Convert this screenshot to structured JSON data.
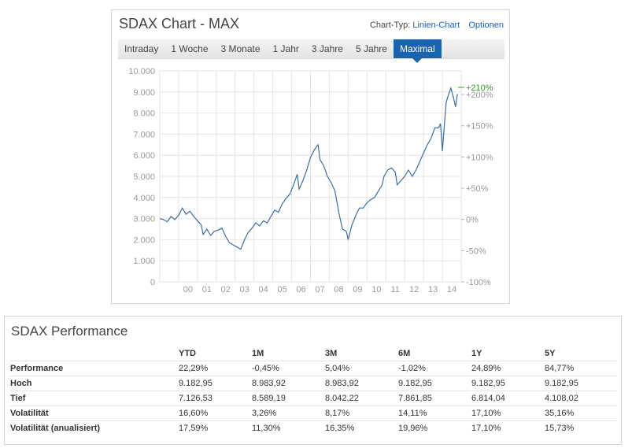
{
  "chart": {
    "title": "SDAX Chart - MAX",
    "chart_type_label": "Chart-Typ:",
    "chart_type_value": "Linien-Chart",
    "options_label": "Optionen",
    "tabs": [
      {
        "label": "Intraday",
        "active": false
      },
      {
        "label": "1 Woche",
        "active": false
      },
      {
        "label": "3 Monate",
        "active": false
      },
      {
        "label": "1 Jahr",
        "active": false
      },
      {
        "label": "3 Jahre",
        "active": false
      },
      {
        "label": "5 Jahre",
        "active": false
      },
      {
        "label": "Maximal",
        "active": true
      }
    ]
  },
  "chart_data": {
    "type": "line",
    "ylim": [
      0,
      10000
    ],
    "y_ticks": [
      "0",
      "1.000",
      "2.000",
      "3.000",
      "4.000",
      "5.000",
      "6.000",
      "7.000",
      "8.000",
      "9.000",
      "10.000"
    ],
    "y2_ticks": [
      "-100%",
      "-50%",
      "0%",
      "+50%",
      "+100%",
      "+150%",
      "+200%"
    ],
    "y2_values": [
      -100,
      -50,
      0,
      50,
      100,
      150,
      200
    ],
    "xlim": [
      1999.0,
      2015.0
    ],
    "x_ticks": [
      "00",
      "01",
      "02",
      "03",
      "04",
      "05",
      "06",
      "07",
      "08",
      "09",
      "10",
      "11",
      "12",
      "13",
      "14"
    ],
    "x_tick_values": [
      2000.5,
      2001.5,
      2002.5,
      2003.5,
      2004.5,
      2005.5,
      2006.5,
      2007.5,
      2008.5,
      2009.5,
      2010.5,
      2011.5,
      2012.5,
      2013.5,
      2014.5
    ],
    "current_change": "+210%",
    "grid": true,
    "series": [
      {
        "color": "#3a6ea5",
        "points": [
          [
            1999.0,
            3000
          ],
          [
            1999.2,
            2950
          ],
          [
            1999.4,
            2850
          ],
          [
            1999.6,
            3100
          ],
          [
            1999.8,
            2950
          ],
          [
            2000.0,
            3150
          ],
          [
            2000.2,
            3500
          ],
          [
            2000.4,
            3200
          ],
          [
            2000.6,
            3350
          ],
          [
            2000.8,
            3100
          ],
          [
            2001.0,
            2900
          ],
          [
            2001.2,
            2700
          ],
          [
            2001.3,
            2250
          ],
          [
            2001.5,
            2500
          ],
          [
            2001.7,
            2200
          ],
          [
            2001.9,
            2400
          ],
          [
            2002.1,
            2450
          ],
          [
            2002.3,
            2550
          ],
          [
            2002.5,
            2150
          ],
          [
            2002.7,
            1850
          ],
          [
            2002.9,
            1750
          ],
          [
            2003.1,
            1650
          ],
          [
            2003.3,
            1550
          ],
          [
            2003.5,
            2000
          ],
          [
            2003.7,
            2350
          ],
          [
            2003.9,
            2550
          ],
          [
            2004.1,
            2800
          ],
          [
            2004.3,
            2650
          ],
          [
            2004.5,
            2900
          ],
          [
            2004.7,
            2800
          ],
          [
            2004.9,
            3100
          ],
          [
            2005.1,
            3400
          ],
          [
            2005.3,
            3300
          ],
          [
            2005.5,
            3700
          ],
          [
            2005.7,
            3950
          ],
          [
            2005.9,
            4150
          ],
          [
            2006.1,
            4600
          ],
          [
            2006.3,
            5100
          ],
          [
            2006.4,
            4400
          ],
          [
            2006.6,
            4800
          ],
          [
            2006.8,
            5300
          ],
          [
            2007.0,
            5900
          ],
          [
            2007.2,
            6250
          ],
          [
            2007.4,
            6500
          ],
          [
            2007.5,
            5800
          ],
          [
            2007.7,
            5500
          ],
          [
            2007.9,
            5000
          ],
          [
            2008.1,
            4700
          ],
          [
            2008.3,
            4300
          ],
          [
            2008.5,
            3300
          ],
          [
            2008.7,
            2500
          ],
          [
            2008.9,
            2400
          ],
          [
            2009.0,
            2000
          ],
          [
            2009.2,
            2700
          ],
          [
            2009.4,
            3150
          ],
          [
            2009.6,
            3500
          ],
          [
            2009.8,
            3500
          ],
          [
            2010.0,
            3750
          ],
          [
            2010.2,
            3900
          ],
          [
            2010.4,
            4000
          ],
          [
            2010.6,
            4300
          ],
          [
            2010.8,
            4600
          ],
          [
            2010.9,
            5000
          ],
          [
            2011.1,
            5300
          ],
          [
            2011.3,
            5400
          ],
          [
            2011.5,
            5200
          ],
          [
            2011.6,
            4600
          ],
          [
            2011.8,
            4800
          ],
          [
            2012.0,
            5000
          ],
          [
            2012.2,
            5300
          ],
          [
            2012.4,
            5000
          ],
          [
            2012.6,
            5300
          ],
          [
            2012.8,
            5700
          ],
          [
            2013.0,
            6100
          ],
          [
            2013.2,
            6500
          ],
          [
            2013.4,
            6800
          ],
          [
            2013.6,
            7300
          ],
          [
            2013.8,
            7300
          ],
          [
            2013.9,
            7500
          ],
          [
            2014.0,
            6200
          ],
          [
            2014.1,
            7400
          ],
          [
            2014.2,
            8500
          ],
          [
            2014.3,
            8800
          ],
          [
            2014.45,
            9180
          ],
          [
            2014.6,
            8700
          ],
          [
            2014.7,
            8300
          ],
          [
            2014.8,
            8900
          ]
        ]
      }
    ]
  },
  "performance": {
    "title": "SDAX Performance",
    "columns": [
      "",
      "YTD",
      "1M",
      "3M",
      "6M",
      "1Y",
      "5Y"
    ],
    "rows": [
      {
        "label": "Performance",
        "values": [
          "22,29%",
          "-0,45%",
          "5,04%",
          "-1,02%",
          "24,89%",
          "84,77%"
        ],
        "colored": true
      },
      {
        "label": "Hoch",
        "values": [
          "9.182,95",
          "8.983,92",
          "8.983,92",
          "9.182,95",
          "9.182,95",
          "9.182,95"
        ],
        "colored": false
      },
      {
        "label": "Tief",
        "values": [
          "7.126,53",
          "8.589,19",
          "8.042,22",
          "7.861,85",
          "6.814,04",
          "4.108,02"
        ],
        "colored": false
      },
      {
        "label": "Volatilität",
        "values": [
          "16,60%",
          "3,26%",
          "8,17%",
          "14,11%",
          "17,10%",
          "35,16%"
        ],
        "colored": false
      },
      {
        "label": "Volatilität (anualisiert)",
        "values": [
          "17,59%",
          "11,30%",
          "16,35%",
          "19,96%",
          "17,10%",
          "15,73%"
        ],
        "colored": false
      }
    ],
    "colors": {
      "positive": "#2e9a1f",
      "negative": "#d0021b"
    }
  }
}
